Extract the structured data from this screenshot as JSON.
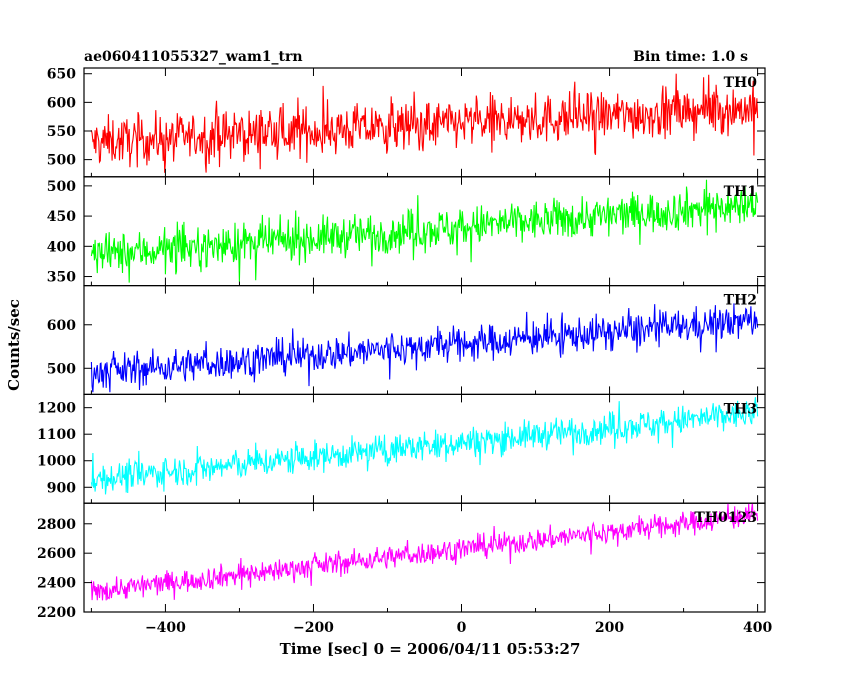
{
  "header": {
    "title": "ae060411055327_wam1_trn",
    "bin_time": "Bin time: 1.0 s"
  },
  "chart_data": {
    "type": "line",
    "xlabel": "Time [sec] 0 = 2006/04/11 05:53:27",
    "ylabel": "Counts/sec",
    "xlim": [
      -510,
      410
    ],
    "x_ticks": [
      -400,
      -200,
      0,
      200,
      400
    ],
    "x_tick_labels": [
      "−400",
      "−200",
      "0",
      "200",
      "400"
    ],
    "panels": [
      {
        "name": "TH0",
        "color": "#ff0000",
        "ylim": [
          470,
          660
        ],
        "y_ticks": [
          500,
          550,
          600,
          650
        ],
        "x_range": [
          -500,
          400
        ],
        "trend": {
          "start": 530,
          "end": 590
        },
        "noise_amplitude": 38,
        "min_seen": 477,
        "max_seen": 660
      },
      {
        "name": "TH1",
        "color": "#00ff00",
        "ylim": [
          335,
          515
        ],
        "y_ticks": [
          350,
          400,
          450,
          500
        ],
        "x_range": [
          -500,
          400
        ],
        "trend": {
          "start": 385,
          "end": 470
        },
        "noise_amplitude": 30,
        "min_seen": 340,
        "max_seen": 510
      },
      {
        "name": "TH2",
        "color": "#0000ff",
        "ylim": [
          440,
          690
        ],
        "y_ticks": [
          500,
          600
        ],
        "x_range": [
          -500,
          400
        ],
        "trend": {
          "start": 490,
          "end": 610
        },
        "noise_amplitude": 35,
        "min_seen": 445,
        "max_seen": 690
      },
      {
        "name": "TH3",
        "color": "#00ffff",
        "ylim": [
          840,
          1250
        ],
        "y_ticks": [
          900,
          1000,
          1100,
          1200
        ],
        "x_range": [
          -500,
          400
        ],
        "trend": {
          "start": 930,
          "end": 1180
        },
        "noise_amplitude": 50,
        "min_seen": 860,
        "max_seen": 1250
      },
      {
        "name": "TH0123",
        "color": "#ff00ff",
        "ylim": [
          2200,
          2940
        ],
        "y_ticks": [
          2200,
          2400,
          2600,
          2800
        ],
        "x_range": [
          -500,
          400
        ],
        "trend": {
          "start": 2340,
          "end": 2860
        },
        "noise_amplitude": 70,
        "min_seen": 2270,
        "max_seen": 2940
      }
    ]
  }
}
